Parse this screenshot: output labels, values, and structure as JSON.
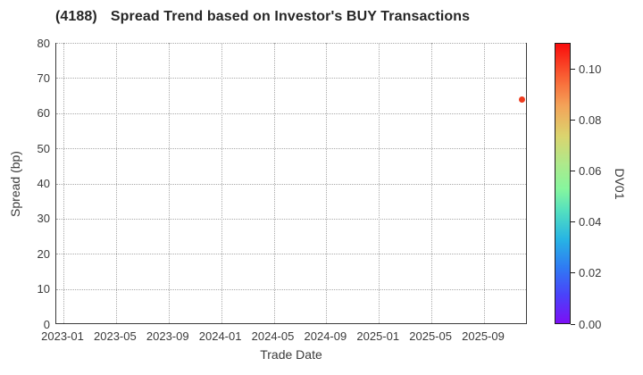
{
  "header": {
    "code": "(4188)",
    "title": "Spread Trend based on Investor's BUY Transactions"
  },
  "chart_data": {
    "type": "scatter",
    "title": "(4188) Spread Trend based on Investor's BUY Transactions",
    "xlabel": "Trade Date",
    "ylabel": "Spread (bp)",
    "x_tick_labels": [
      "2023-01",
      "2023-05",
      "2023-09",
      "2024-01",
      "2024-05",
      "2024-09",
      "2025-01",
      "2025-05",
      "2025-09"
    ],
    "y_ticks": [
      0,
      10,
      20,
      30,
      40,
      50,
      60,
      70,
      80
    ],
    "ylim": [
      0,
      80
    ],
    "xlim": [
      "2022-12",
      "2025-12"
    ],
    "grid": true,
    "legend": "none",
    "points": [
      {
        "trade_date": "2025-11-27",
        "spread_bp": 64,
        "dv01": 0.1,
        "color": "#ee3b1e"
      }
    ],
    "colorbar": {
      "label": "DV01",
      "tick_values": [
        0,
        0.02,
        0.04,
        0.06,
        0.08,
        0.1
      ],
      "range": [
        0,
        0.1105
      ],
      "colormap": "rainbow",
      "gradient": [
        {
          "pos": 0.0,
          "color": "#7c0ff5"
        },
        {
          "pos": 0.1,
          "color": "#4a42fa"
        },
        {
          "pos": 0.2,
          "color": "#2f7bf3"
        },
        {
          "pos": 0.3,
          "color": "#27b4e4"
        },
        {
          "pos": 0.4,
          "color": "#52dfc0"
        },
        {
          "pos": 0.48,
          "color": "#86f69e"
        },
        {
          "pos": 0.57,
          "color": "#aee98b"
        },
        {
          "pos": 0.67,
          "color": "#dbd46e"
        },
        {
          "pos": 0.78,
          "color": "#f4a258"
        },
        {
          "pos": 0.88,
          "color": "#f96134"
        },
        {
          "pos": 1.0,
          "color": "#f90c0c"
        }
      ]
    }
  }
}
